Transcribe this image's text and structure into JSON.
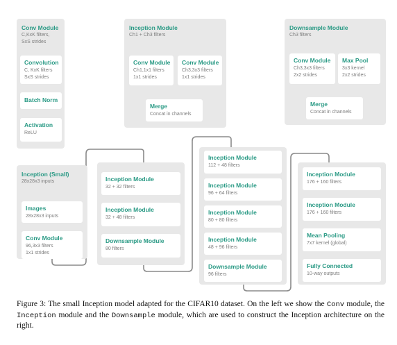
{
  "conv_module": {
    "title": "Conv Module",
    "desc1": "C,KxK filters,",
    "desc2": "SxS strides",
    "convolution": {
      "title": "Convolution",
      "desc1": "C, KxK filters",
      "desc2": "SxS strides"
    },
    "batch_norm": {
      "title": "Batch Norm"
    },
    "activation": {
      "title": "Activation",
      "desc1": "ReLU"
    }
  },
  "inception_module": {
    "title": "Inception Module",
    "desc1": "Ch1 + Ch3 filters",
    "conv_a": {
      "title": "Conv Module",
      "desc1": "Ch1,1x1 filters",
      "desc2": "1x1 strides"
    },
    "conv_b": {
      "title": "Conv Module",
      "desc1": "Ch3,3x3 filters",
      "desc2": "1x1 strides"
    },
    "merge": {
      "title": "Merge",
      "desc1": "Concat in channels"
    }
  },
  "downsample_module": {
    "title": "Downsample Module",
    "desc1": "Ch3 filters",
    "conv": {
      "title": "Conv Module",
      "desc1": "Ch3,3x3 filters",
      "desc2": "2x2 strides"
    },
    "maxpool": {
      "title": "Max Pool",
      "desc1": "3x3 kernel",
      "desc2": "2x2 strides"
    },
    "merge": {
      "title": "Merge",
      "desc1": "Concat in channels"
    }
  },
  "inception_small": {
    "title": "Inception (Small)",
    "desc1": "28x28x3 inputs",
    "images": {
      "title": "Images",
      "desc1": "28x28x3 inputs"
    },
    "conv": {
      "title": "Conv Module",
      "desc1": "96,3x3 filters",
      "desc2": "1x1 strides"
    }
  },
  "column2": [
    {
      "title": "Inception Module",
      "desc1": "32 + 32 filters"
    },
    {
      "title": "Inception Module",
      "desc1": "32 + 48 filters"
    },
    {
      "title": "Downsample Module",
      "desc1": "80 filters"
    }
  ],
  "column3": [
    {
      "title": "Inception Module",
      "desc1": "112 + 48 filters"
    },
    {
      "title": "Inception Module",
      "desc1": "96 + 64 filters"
    },
    {
      "title": "Inception Module",
      "desc1": "80 + 80 filters"
    },
    {
      "title": "Inception Module",
      "desc1": "48 + 96 filters"
    },
    {
      "title": "Downsample Module",
      "desc1": "96 filters"
    }
  ],
  "column4": [
    {
      "title": "Inception Module",
      "desc1": "176 + 160 filters"
    },
    {
      "title": "Inception Module",
      "desc1": "176 + 160 filters"
    },
    {
      "title": "Mean Pooling",
      "desc1": "7x7 kernel (global)"
    },
    {
      "title": "Fully Connected",
      "desc1": "10-way outputs"
    }
  ],
  "caption": {
    "p1": "Figure 3: The small Inception model adapted for the CIFAR10 dataset.  On the left we show the",
    "m1": "Conv",
    "p2": " module, the ",
    "m2": "Inception",
    "p3": " module and the ",
    "m3": "Downsample",
    "p4": " module, which are used to construct the Inception architecture on the right."
  },
  "colors": {
    "accent": "#2a9a85",
    "panel": "#e8e8e8",
    "line": "#808080",
    "subtext": "#7d7d7d"
  }
}
